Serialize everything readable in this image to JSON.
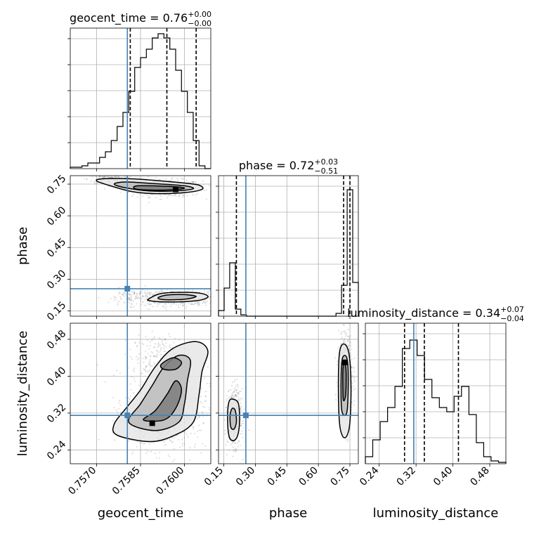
{
  "chart_data": {
    "type": "corner",
    "colors": {
      "truth": "#4682b4",
      "contour": "#000000",
      "grid": "#b0b0b0",
      "scatter": "#555555"
    },
    "parameters": [
      {
        "name": "geocent_time",
        "truth": 0.75805,
        "range": [
          0.7561,
          0.7609
        ],
        "ticks": [
          0.757,
          0.7585,
          0.76
        ],
        "tick_labels": [
          "0.7570",
          "0.7585",
          "0.7600"
        ],
        "title_main": "geocent_time = 0.76",
        "title_plus": "+0.00",
        "title_minus": "−0.00",
        "quantiles": [
          0.75815,
          0.7594,
          0.7604
        ],
        "hist": [
          0.01,
          0.01,
          0.02,
          0.04,
          0.04,
          0.08,
          0.12,
          0.2,
          0.3,
          0.4,
          0.55,
          0.72,
          0.79,
          0.85,
          0.93,
          0.96,
          0.93,
          0.85,
          0.7,
          0.55,
          0.4,
          0.2,
          0.02,
          0.0
        ]
      },
      {
        "name": "phase",
        "truth": 0.255,
        "range": [
          0.125,
          0.79
        ],
        "ticks": [
          0.15,
          0.3,
          0.45,
          0.6,
          0.75
        ],
        "tick_labels": [
          "0.15",
          "0.30",
          "0.45",
          "0.60",
          "0.75"
        ],
        "title_main": "phase = 0.72",
        "title_plus": "+0.03",
        "title_minus": "−0.51",
        "quantiles": [
          0.21,
          0.72,
          0.75
        ],
        "hist": [
          0.04,
          0.2,
          0.38,
          0.05,
          0.01,
          0.0,
          0.0,
          0.0,
          0.0,
          0.0,
          0.0,
          0.0,
          0.0,
          0.0,
          0.0,
          0.0,
          0.0,
          0.0,
          0.0,
          0.0,
          0.0,
          0.02,
          0.22,
          0.9,
          0.24
        ]
      },
      {
        "name": "luminosity_distance",
        "truth": 0.315,
        "range": [
          0.21,
          0.515
        ],
        "ticks": [
          0.24,
          0.32,
          0.4,
          0.48
        ],
        "tick_labels": [
          "0.24",
          "0.32",
          "0.40",
          "0.48"
        ],
        "title_main": "luminosity_distance = 0.34",
        "title_plus": "+0.07",
        "title_minus": "−0.04",
        "quantiles": [
          0.295,
          0.338,
          0.412
        ],
        "hist": [
          0.05,
          0.17,
          0.3,
          0.4,
          0.55,
          0.82,
          0.88,
          0.77,
          0.6,
          0.47,
          0.4,
          0.37,
          0.48,
          0.55,
          0.35,
          0.15,
          0.05,
          0.02,
          0.01
        ]
      }
    ],
    "scatter": {
      "geocent_time-phase": [
        {
          "cx": 0.7594,
          "cy": 0.73,
          "sx": 0.0006,
          "sy": 0.02,
          "n": 500
        },
        {
          "cx": 0.7575,
          "cy": 0.775,
          "sx": 0.0004,
          "sy": 0.012,
          "n": 160
        },
        {
          "cx": 0.7597,
          "cy": 0.21,
          "sx": 0.0007,
          "sy": 0.018,
          "n": 500
        },
        {
          "cx": 0.7582,
          "cy": 0.215,
          "sx": 0.0004,
          "sy": 0.02,
          "n": 80
        }
      ],
      "geocent_time-luminosity_distance": [
        {
          "cx": 0.7594,
          "cy": 0.33,
          "sx": 0.0007,
          "sy": 0.045,
          "n": 700
        },
        {
          "cx": 0.7592,
          "cy": 0.44,
          "sx": 0.0005,
          "sy": 0.025,
          "n": 220
        },
        {
          "cx": 0.7588,
          "cy": 0.3,
          "sx": 0.0005,
          "sy": 0.02,
          "n": 200
        }
      ],
      "phase-luminosity_distance": [
        {
          "cx": 0.73,
          "cy": 0.4,
          "sx": 0.017,
          "sy": 0.045,
          "n": 650
        },
        {
          "cx": 0.2,
          "cy": 0.31,
          "sx": 0.016,
          "sy": 0.03,
          "n": 500
        }
      ]
    },
    "contours": {
      "geocent_time-phase": [
        [
          [
            0.7572,
            0.775
          ],
          [
            0.7582,
            0.775
          ],
          [
            0.7592,
            0.765
          ],
          [
            0.76,
            0.755
          ],
          [
            0.7605,
            0.745
          ],
          [
            0.7606,
            0.725
          ],
          [
            0.76,
            0.71
          ],
          [
            0.759,
            0.705
          ],
          [
            0.7582,
            0.715
          ],
          [
            0.7574,
            0.745
          ],
          [
            0.757,
            0.765
          ]
        ],
        [
          [
            0.758,
            0.76
          ],
          [
            0.759,
            0.752
          ],
          [
            0.76,
            0.742
          ],
          [
            0.7603,
            0.728
          ],
          [
            0.7597,
            0.718
          ],
          [
            0.7588,
            0.718
          ],
          [
            0.758,
            0.732
          ],
          [
            0.7576,
            0.75
          ]
        ],
        [
          [
            0.7584,
            0.742
          ],
          [
            0.7596,
            0.738
          ],
          [
            0.76,
            0.73
          ],
          [
            0.7594,
            0.722
          ],
          [
            0.7584,
            0.725
          ]
        ],
        [
          [
            0.7588,
            0.208
          ],
          [
            0.7592,
            0.232
          ],
          [
            0.76,
            0.238
          ],
          [
            0.7606,
            0.232
          ],
          [
            0.7608,
            0.215
          ],
          [
            0.7604,
            0.198
          ],
          [
            0.7594,
            0.192
          ],
          [
            0.7588,
            0.198
          ]
        ],
        [
          [
            0.7591,
            0.212
          ],
          [
            0.7594,
            0.225
          ],
          [
            0.76,
            0.227
          ],
          [
            0.7604,
            0.218
          ],
          [
            0.76,
            0.205
          ],
          [
            0.7593,
            0.203
          ]
        ]
      ],
      "geocent_time-luminosity_distance": [
        [
          [
            0.7577,
            0.272
          ],
          [
            0.7576,
            0.296
          ],
          [
            0.758,
            0.33
          ],
          [
            0.7585,
            0.37
          ],
          [
            0.759,
            0.42
          ],
          [
            0.7596,
            0.46
          ],
          [
            0.7604,
            0.475
          ],
          [
            0.7608,
            0.455
          ],
          [
            0.7606,
            0.41
          ],
          [
            0.7605,
            0.36
          ],
          [
            0.7603,
            0.3
          ],
          [
            0.7596,
            0.27
          ],
          [
            0.7588,
            0.258
          ]
        ],
        [
          [
            0.7581,
            0.3
          ],
          [
            0.7585,
            0.34
          ],
          [
            0.7589,
            0.38
          ],
          [
            0.7593,
            0.42
          ],
          [
            0.7598,
            0.445
          ],
          [
            0.7602,
            0.435
          ],
          [
            0.7601,
            0.39
          ],
          [
            0.76,
            0.34
          ],
          [
            0.7598,
            0.3
          ],
          [
            0.759,
            0.282
          ]
        ],
        [
          [
            0.7586,
            0.305
          ],
          [
            0.759,
            0.325
          ],
          [
            0.7594,
            0.36
          ],
          [
            0.7597,
            0.39
          ],
          [
            0.7599,
            0.37
          ],
          [
            0.7597,
            0.33
          ],
          [
            0.7593,
            0.305
          ]
        ],
        [
          [
            0.7592,
            0.425
          ],
          [
            0.7596,
            0.44
          ],
          [
            0.7599,
            0.43
          ],
          [
            0.7597,
            0.415
          ],
          [
            0.7593,
            0.415
          ]
        ]
      ],
      "phase-luminosity_distance": [
        [
          [
            0.7,
            0.3
          ],
          [
            0.695,
            0.38
          ],
          [
            0.7,
            0.45
          ],
          [
            0.72,
            0.47
          ],
          [
            0.745,
            0.45
          ],
          [
            0.755,
            0.38
          ],
          [
            0.75,
            0.3
          ],
          [
            0.735,
            0.27
          ],
          [
            0.715,
            0.27
          ]
        ],
        [
          [
            0.71,
            0.33
          ],
          [
            0.708,
            0.4
          ],
          [
            0.715,
            0.44
          ],
          [
            0.735,
            0.44
          ],
          [
            0.742,
            0.4
          ],
          [
            0.738,
            0.33
          ],
          [
            0.725,
            0.315
          ]
        ],
        [
          [
            0.718,
            0.35
          ],
          [
            0.716,
            0.41
          ],
          [
            0.724,
            0.43
          ],
          [
            0.732,
            0.41
          ],
          [
            0.73,
            0.36
          ]
        ],
        [
          [
            0.175,
            0.27
          ],
          [
            0.168,
            0.31
          ],
          [
            0.175,
            0.345
          ],
          [
            0.195,
            0.35
          ],
          [
            0.22,
            0.34
          ],
          [
            0.225,
            0.3
          ],
          [
            0.215,
            0.27
          ],
          [
            0.195,
            0.26
          ]
        ],
        [
          [
            0.183,
            0.29
          ],
          [
            0.18,
            0.315
          ],
          [
            0.19,
            0.33
          ],
          [
            0.205,
            0.325
          ],
          [
            0.21,
            0.3
          ],
          [
            0.198,
            0.285
          ]
        ]
      ]
    },
    "maxima": {
      "geocent_time-phase": [
        0.7597,
        0.725
      ],
      "geocent_time-luminosity_distance": [
        0.7589,
        0.298
      ],
      "phase-luminosity_distance": [
        0.725,
        0.43
      ]
    }
  }
}
